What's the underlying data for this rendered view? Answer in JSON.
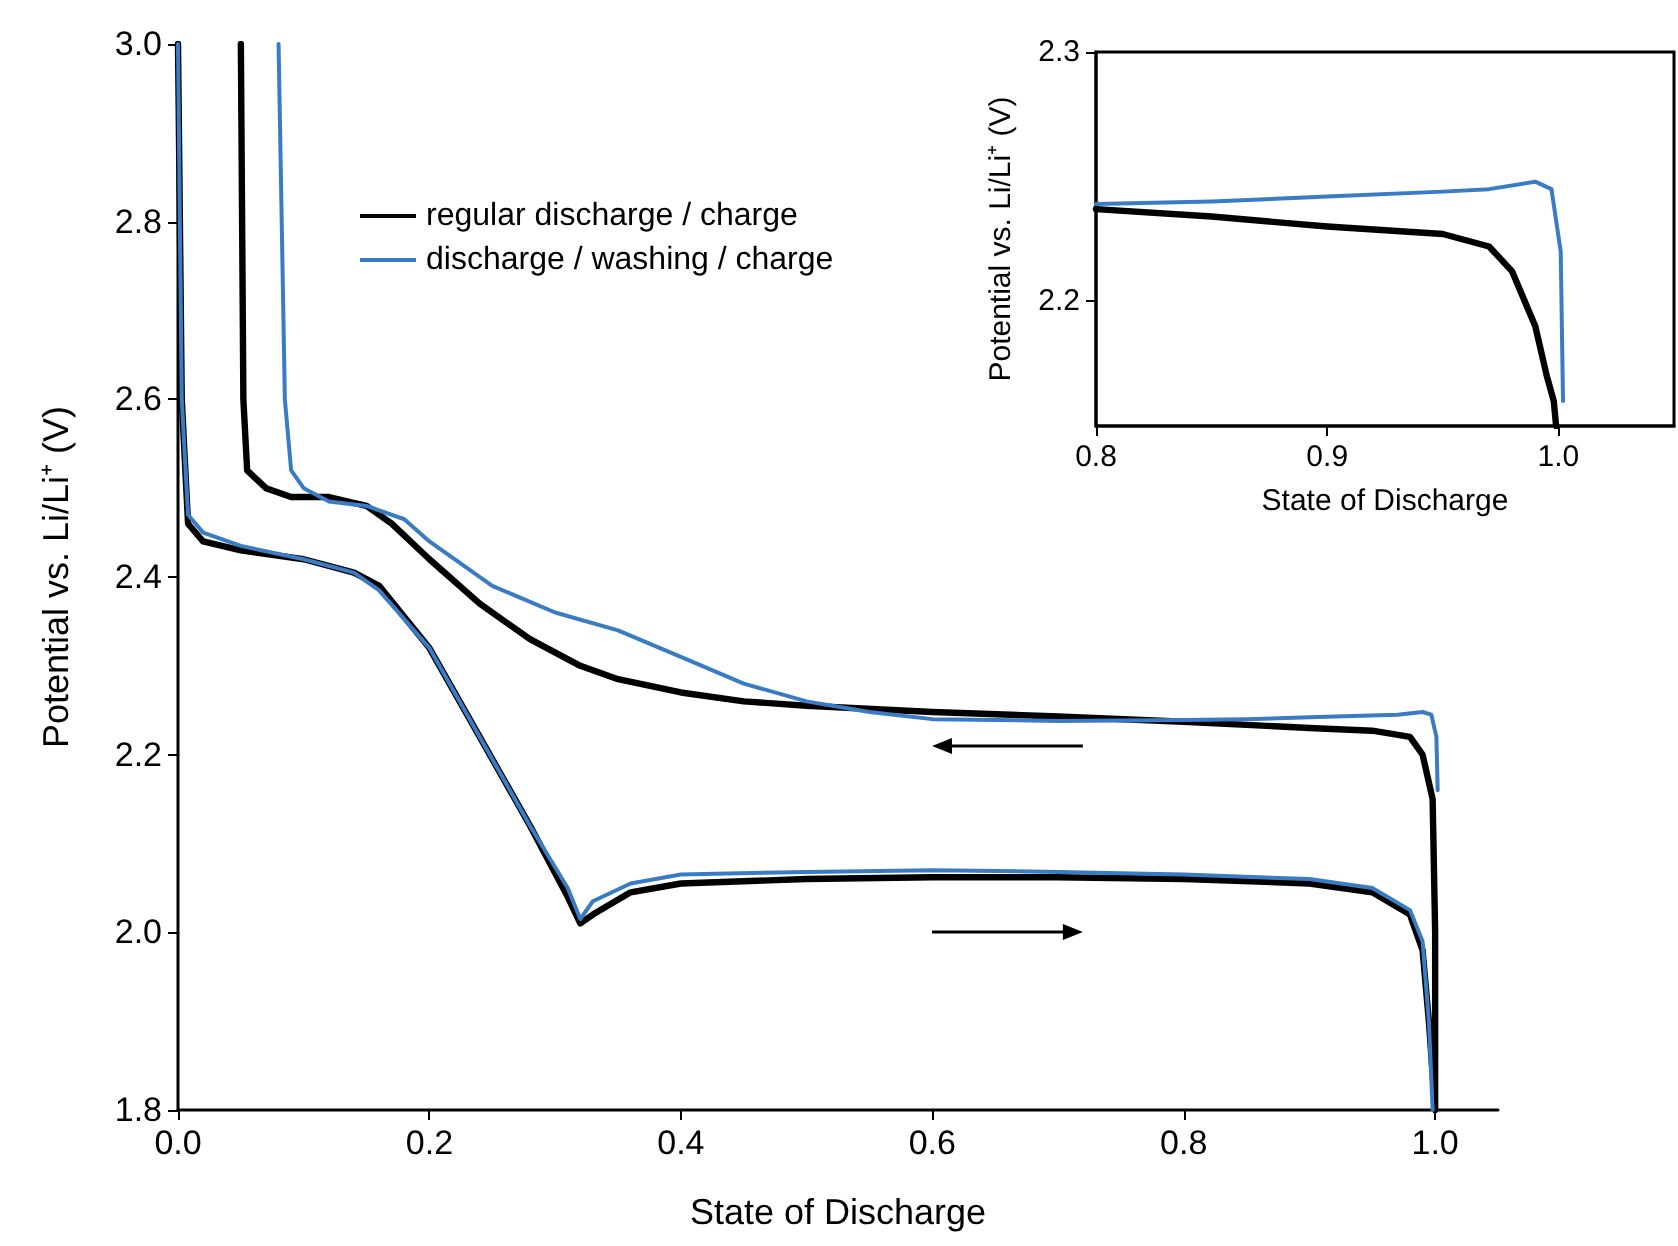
{
  "chart_data": [
    {
      "type": "line",
      "xlabel": "State of Discharge",
      "ylabel": "Potential vs. Li/Li⁺ (V)",
      "xlim": [
        0,
        1.05
      ],
      "ylim": [
        1.8,
        3.0
      ],
      "xticks": [
        {
          "value": 0,
          "label": "0.0"
        },
        {
          "value": 0.2,
          "label": "0.2"
        },
        {
          "value": 0.4,
          "label": "0.4"
        },
        {
          "value": 0.6,
          "label": "0.6"
        },
        {
          "value": 0.8,
          "label": "0.8"
        },
        {
          "value": 1,
          "label": "1.0"
        }
      ],
      "yticks": [
        {
          "value": 1.8,
          "label": "1.8"
        },
        {
          "value": 2,
          "label": "2.0"
        },
        {
          "value": 2.2,
          "label": "2.2"
        },
        {
          "value": 2.4,
          "label": "2.4"
        },
        {
          "value": 2.6,
          "label": "2.6"
        },
        {
          "value": 2.8,
          "label": "2.8"
        },
        {
          "value": 3,
          "label": "3.0"
        }
      ],
      "grid": false,
      "legend": "top",
      "marker": "none",
      "line_style": "solid",
      "series": [
        {
          "name": "regular discharge / charge",
          "color": "#000000",
          "x": [
            0,
            0.003,
            0.008,
            0.02,
            0.05,
            0.1,
            0.14,
            0.16,
            0.2,
            0.24,
            0.28,
            0.31,
            0.32,
            0.33,
            0.36,
            0.4,
            0.5,
            0.6,
            0.7,
            0.8,
            0.9,
            0.95,
            0.98,
            0.99,
            0.995,
            1,
            1,
            0.998,
            0.99,
            0.98,
            0.95,
            0.9,
            0.8,
            0.7,
            0.6,
            0.5,
            0.45,
            0.4,
            0.35,
            0.32,
            0.28,
            0.24,
            0.2,
            0.17,
            0.15,
            0.12,
            0.09,
            0.07,
            0.055,
            0.052,
            0.05
          ],
          "values": [
            3.0,
            2.6,
            2.46,
            2.44,
            2.43,
            2.42,
            2.405,
            2.39,
            2.32,
            2.22,
            2.12,
            2.04,
            2.01,
            2.02,
            2.045,
            2.055,
            2.06,
            2.062,
            2.062,
            2.06,
            2.055,
            2.045,
            2.02,
            1.98,
            1.9,
            1.8,
            2.0,
            2.15,
            2.2,
            2.22,
            2.227,
            2.23,
            2.237,
            2.243,
            2.248,
            2.255,
            2.26,
            2.27,
            2.285,
            2.3,
            2.33,
            2.37,
            2.42,
            2.46,
            2.48,
            2.49,
            2.49,
            2.5,
            2.52,
            2.6,
            3.0
          ]
        },
        {
          "name": "discharge / washing / charge",
          "color": "#3a7cc4",
          "x": [
            0,
            0.003,
            0.008,
            0.02,
            0.05,
            0.1,
            0.14,
            0.16,
            0.2,
            0.24,
            0.28,
            0.31,
            0.32,
            0.33,
            0.36,
            0.4,
            0.5,
            0.6,
            0.7,
            0.8,
            0.9,
            0.95,
            0.98,
            0.99,
            0.995,
            0.998,
            1.0,
            1.002,
            1.001,
            0.997,
            0.99,
            0.97,
            0.9,
            0.85,
            0.8,
            0.7,
            0.6,
            0.55,
            0.5,
            0.45,
            0.4,
            0.35,
            0.3,
            0.25,
            0.2,
            0.18,
            0.15,
            0.12,
            0.1,
            0.09,
            0.085,
            0.08
          ],
          "values": [
            3.0,
            2.6,
            2.47,
            2.45,
            2.435,
            2.42,
            2.405,
            2.385,
            2.32,
            2.22,
            2.12,
            2.05,
            2.015,
            2.035,
            2.055,
            2.065,
            2.068,
            2.07,
            2.068,
            2.065,
            2.06,
            2.05,
            2.025,
            1.99,
            1.9,
            1.8,
            null,
            2.16,
            2.22,
            2.245,
            2.248,
            2.245,
            2.242,
            2.24,
            2.239,
            2.238,
            2.24,
            2.248,
            2.26,
            2.28,
            2.31,
            2.34,
            2.36,
            2.39,
            2.44,
            2.465,
            2.48,
            2.485,
            2.5,
            2.52,
            2.6,
            3.0
          ]
        }
      ]
    },
    {
      "type": "line",
      "xlabel": "State of Discharge",
      "ylabel": "Potential vs. Li/Li⁺ (V)",
      "xlim": [
        0.8,
        1.05
      ],
      "ylim": [
        2.15,
        2.3
      ],
      "xticks": [
        {
          "value": 0.8,
          "label": "0.8"
        },
        {
          "value": 0.9,
          "label": "0.9"
        },
        {
          "value": 1,
          "label": "1.0"
        }
      ],
      "yticks": [
        {
          "value": 2.2,
          "label": "2.2"
        },
        {
          "value": 2.3,
          "label": "2.3"
        }
      ],
      "grid": false,
      "legend": false,
      "marker": "none",
      "line_style": "solid",
      "series": [
        {
          "color": "#000000",
          "x": [
            0.8,
            0.85,
            0.9,
            0.95,
            0.97,
            0.98,
            0.99,
            0.995,
            0.998,
            0.999
          ],
          "values": [
            2.237,
            2.234,
            2.23,
            2.227,
            2.222,
            2.212,
            2.19,
            2.17,
            2.16,
            2.15
          ]
        },
        {
          "color": "#3a7cc4",
          "x": [
            0.8,
            0.85,
            0.9,
            0.95,
            0.97,
            0.99,
            0.997,
            1.001,
            1.002
          ],
          "values": [
            2.239,
            2.24,
            2.242,
            2.244,
            2.245,
            2.248,
            2.245,
            2.22,
            2.16
          ]
        }
      ]
    }
  ]
}
